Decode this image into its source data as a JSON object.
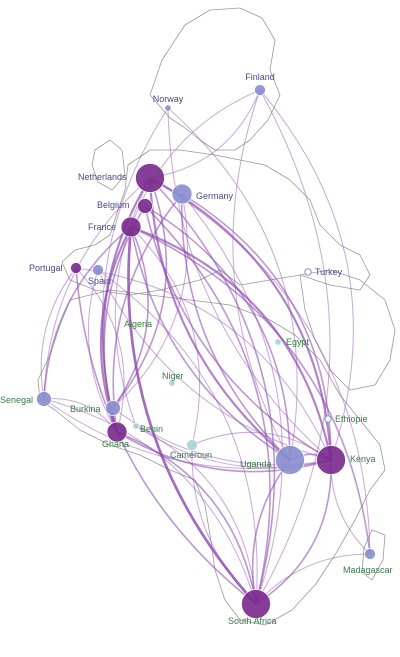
{
  "map": {
    "countries": [
      {
        "id": "finland",
        "name": "Finland",
        "group": "europe",
        "size": "s",
        "tone": "light"
      },
      {
        "id": "norway",
        "name": "Norway",
        "group": "europe",
        "size": "xs",
        "tone": "light"
      },
      {
        "id": "netherlands",
        "name": "Netherlands",
        "group": "europe",
        "size": "xl",
        "tone": "dark"
      },
      {
        "id": "germany",
        "name": "Germany",
        "group": "europe",
        "size": "l",
        "tone": "light"
      },
      {
        "id": "belgium",
        "name": "Belgium",
        "group": "europe",
        "size": "m",
        "tone": "dark"
      },
      {
        "id": "france",
        "name": "France",
        "group": "europe",
        "size": "l",
        "tone": "dark"
      },
      {
        "id": "portugal",
        "name": "Portugal",
        "group": "europe",
        "size": "s",
        "tone": "dark"
      },
      {
        "id": "spain",
        "name": "Spain",
        "group": "europe",
        "size": "s",
        "tone": "light"
      },
      {
        "id": "turkey",
        "name": "Turkey",
        "group": "europe",
        "size": "xs",
        "tone": "hollow"
      },
      {
        "id": "algeria",
        "name": "Algeria",
        "group": "africa",
        "size": "xs",
        "tone": "none"
      },
      {
        "id": "egypt",
        "name": "Egypt",
        "group": "africa",
        "size": "xs",
        "tone": "pale"
      },
      {
        "id": "niger",
        "name": "Niger",
        "group": "africa",
        "size": "xs",
        "tone": "pale"
      },
      {
        "id": "senegal",
        "name": "Senegal",
        "group": "africa",
        "size": "m",
        "tone": "light"
      },
      {
        "id": "burkina",
        "name": "Burkina",
        "group": "africa",
        "size": "m",
        "tone": "light"
      },
      {
        "id": "benin",
        "name": "Benin",
        "group": "africa",
        "size": "xs",
        "tone": "pale"
      },
      {
        "id": "ghana",
        "name": "Ghana",
        "group": "africa",
        "size": "l",
        "tone": "dark"
      },
      {
        "id": "cameroun",
        "name": "Cameroun",
        "group": "africa",
        "size": "s",
        "tone": "pale"
      },
      {
        "id": "ethiopie",
        "name": "Ethiopie",
        "group": "africa",
        "size": "xs",
        "tone": "hollow"
      },
      {
        "id": "uganda",
        "name": "Uganda",
        "group": "africa",
        "size": "xl",
        "tone": "light"
      },
      {
        "id": "kenya",
        "name": "Kenya",
        "group": "africa",
        "size": "xl",
        "tone": "dark"
      },
      {
        "id": "madagascar",
        "name": "Madagascar",
        "group": "africa",
        "size": "s",
        "tone": "light"
      },
      {
        "id": "south_africa",
        "name": "South Africa",
        "group": "africa",
        "size": "xl",
        "tone": "dark"
      }
    ],
    "links": [
      {
        "from": "netherlands",
        "to": "kenya",
        "weight": 3
      },
      {
        "from": "netherlands",
        "to": "uganda",
        "weight": 3
      },
      {
        "from": "netherlands",
        "to": "south_africa",
        "weight": 2
      },
      {
        "from": "netherlands",
        "to": "ghana",
        "weight": 3
      },
      {
        "from": "netherlands",
        "to": "burkina",
        "weight": 2
      },
      {
        "from": "netherlands",
        "to": "senegal",
        "weight": 1
      },
      {
        "from": "netherlands",
        "to": "madagascar",
        "weight": 1
      },
      {
        "from": "netherlands",
        "to": "benin",
        "weight": 1
      },
      {
        "from": "germany",
        "to": "kenya",
        "weight": 2
      },
      {
        "from": "germany",
        "to": "uganda",
        "weight": 2
      },
      {
        "from": "germany",
        "to": "south_africa",
        "weight": 1
      },
      {
        "from": "germany",
        "to": "ghana",
        "weight": 2
      },
      {
        "from": "germany",
        "to": "burkina",
        "weight": 1
      },
      {
        "from": "belgium",
        "to": "kenya",
        "weight": 2
      },
      {
        "from": "belgium",
        "to": "uganda",
        "weight": 2
      },
      {
        "from": "belgium",
        "to": "ghana",
        "weight": 2
      },
      {
        "from": "belgium",
        "to": "south_africa",
        "weight": 2
      },
      {
        "from": "france",
        "to": "south_africa",
        "weight": 4
      },
      {
        "from": "france",
        "to": "kenya",
        "weight": 3
      },
      {
        "from": "france",
        "to": "ghana",
        "weight": 3
      },
      {
        "from": "france",
        "to": "burkina",
        "weight": 2
      },
      {
        "from": "france",
        "to": "senegal",
        "weight": 2
      },
      {
        "from": "france",
        "to": "madagascar",
        "weight": 2
      },
      {
        "from": "france",
        "to": "uganda",
        "weight": 2
      },
      {
        "from": "france",
        "to": "cameroun",
        "weight": 1
      },
      {
        "from": "portugal",
        "to": "south_africa",
        "weight": 2
      },
      {
        "from": "portugal",
        "to": "kenya",
        "weight": 1
      },
      {
        "from": "portugal",
        "to": "senegal",
        "weight": 1
      },
      {
        "from": "portugal",
        "to": "ghana",
        "weight": 1
      },
      {
        "from": "spain",
        "to": "kenya",
        "weight": 1
      },
      {
        "from": "spain",
        "to": "south_africa",
        "weight": 1
      },
      {
        "from": "spain",
        "to": "ghana",
        "weight": 1
      },
      {
        "from": "finland",
        "to": "kenya",
        "weight": 1
      },
      {
        "from": "finland",
        "to": "uganda",
        "weight": 1
      },
      {
        "from": "finland",
        "to": "netherlands",
        "weight": 1
      },
      {
        "from": "finland",
        "to": "france",
        "weight": 1
      },
      {
        "from": "finland",
        "to": "south_africa",
        "weight": 1
      },
      {
        "from": "norway",
        "to": "kenya",
        "weight": 1
      },
      {
        "from": "norway",
        "to": "uganda",
        "weight": 1
      },
      {
        "from": "norway",
        "to": "ghana",
        "weight": 1
      },
      {
        "from": "kenya",
        "to": "south_africa",
        "weight": 2
      },
      {
        "from": "kenya",
        "to": "madagascar",
        "weight": 1
      },
      {
        "from": "uganda",
        "to": "kenya",
        "weight": 2
      },
      {
        "from": "uganda",
        "to": "south_africa",
        "weight": 2
      },
      {
        "from": "ghana",
        "to": "south_africa",
        "weight": 2
      },
      {
        "from": "ghana",
        "to": "kenya",
        "weight": 2
      },
      {
        "from": "ghana",
        "to": "burkina",
        "weight": 1
      },
      {
        "from": "burkina",
        "to": "kenya",
        "weight": 1
      },
      {
        "from": "senegal",
        "to": "south_africa",
        "weight": 1
      },
      {
        "from": "senegal",
        "to": "kenya",
        "weight": 1
      },
      {
        "from": "senegal",
        "to": "ghana",
        "weight": 1
      },
      {
        "from": "cameroun",
        "to": "south_africa",
        "weight": 1
      },
      {
        "from": "cameroun",
        "to": "kenya",
        "weight": 1
      },
      {
        "from": "madagascar",
        "to": "south_africa",
        "weight": 1
      },
      {
        "from": "benin",
        "to": "south_africa",
        "weight": 1
      },
      {
        "from": "benin",
        "to": "kenya",
        "weight": 1
      }
    ],
    "colors": {
      "dark": "#7b2d8e",
      "light": "#8a8fcf",
      "pale": "#a9d3d6",
      "hollow": "#ffffff",
      "europe_label": "#4a4a8a",
      "africa_label": "#3a7d45",
      "link": "#8f4fb0",
      "outline": "#9a9a9a"
    }
  }
}
